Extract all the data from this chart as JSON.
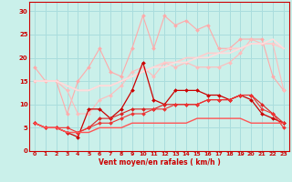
{
  "title": "",
  "xlabel": "Vent moyen/en rafales ( km/h )",
  "ylabel": "",
  "background_color": "#caf0ea",
  "grid_color": "#aadddd",
  "x": [
    0,
    1,
    2,
    3,
    4,
    5,
    6,
    7,
    8,
    9,
    10,
    11,
    12,
    13,
    14,
    15,
    16,
    17,
    18,
    19,
    20,
    21,
    22,
    23
  ],
  "lines": [
    {
      "color": "#ffaaaa",
      "marker": "D",
      "markersize": 2,
      "linewidth": 0.8,
      "y": [
        18,
        15,
        15,
        8,
        15,
        18,
        22,
        17,
        16,
        22,
        29,
        22,
        29,
        27,
        28,
        26,
        27,
        22,
        22,
        24,
        24,
        24,
        16,
        13
      ]
    },
    {
      "color": "#ffbbbb",
      "marker": "D",
      "markersize": 2,
      "linewidth": 0.8,
      "y": [
        15,
        15,
        15,
        13,
        8,
        8,
        11,
        12,
        14,
        17,
        18,
        16,
        19,
        18,
        19,
        18,
        18,
        18,
        19,
        21,
        24,
        23,
        23,
        13
      ]
    },
    {
      "color": "#ffcccc",
      "marker": null,
      "markersize": 0,
      "linewidth": 1.2,
      "y": [
        15,
        15,
        15,
        14,
        13,
        13,
        14,
        14,
        15,
        16,
        17,
        18,
        19,
        19,
        20,
        20,
        21,
        21,
        22,
        22,
        23,
        23,
        23,
        22
      ]
    },
    {
      "color": "#ffdddd",
      "marker": null,
      "markersize": 0,
      "linewidth": 1.2,
      "y": [
        15,
        15,
        15,
        14,
        13,
        13,
        14,
        14,
        15,
        16,
        17,
        18,
        18,
        19,
        19,
        20,
        20,
        21,
        21,
        22,
        23,
        23,
        24,
        22
      ]
    },
    {
      "color": "#cc0000",
      "marker": "D",
      "markersize": 2,
      "linewidth": 0.9,
      "y": [
        6,
        5,
        5,
        4,
        3,
        9,
        9,
        7,
        9,
        13,
        19,
        11,
        10,
        13,
        13,
        13,
        12,
        12,
        11,
        12,
        11,
        8,
        7,
        6
      ]
    },
    {
      "color": "#dd2222",
      "marker": "D",
      "markersize": 2,
      "linewidth": 0.8,
      "y": [
        6,
        5,
        5,
        4,
        4,
        5,
        7,
        7,
        8,
        9,
        9,
        9,
        10,
        10,
        10,
        10,
        11,
        11,
        11,
        12,
        12,
        10,
        8,
        6
      ]
    },
    {
      "color": "#ee3333",
      "marker": "D",
      "markersize": 2,
      "linewidth": 0.8,
      "y": [
        6,
        5,
        5,
        5,
        4,
        5,
        6,
        6,
        7,
        8,
        8,
        9,
        9,
        10,
        10,
        10,
        11,
        11,
        11,
        12,
        12,
        9,
        8,
        5
      ]
    },
    {
      "color": "#ff5555",
      "marker": null,
      "markersize": 0,
      "linewidth": 1.0,
      "y": [
        6,
        5,
        5,
        4,
        4,
        4,
        5,
        5,
        5,
        6,
        6,
        6,
        6,
        6,
        6,
        7,
        7,
        7,
        7,
        7,
        6,
        6,
        6,
        6
      ]
    }
  ],
  "ylim": [
    0,
    32
  ],
  "xlim": [
    -0.5,
    23.5
  ],
  "yticks": [
    0,
    5,
    10,
    15,
    20,
    25,
    30
  ],
  "xticks": [
    0,
    1,
    2,
    3,
    4,
    5,
    6,
    7,
    8,
    9,
    10,
    11,
    12,
    13,
    14,
    15,
    16,
    17,
    18,
    19,
    20,
    21,
    22,
    23
  ]
}
